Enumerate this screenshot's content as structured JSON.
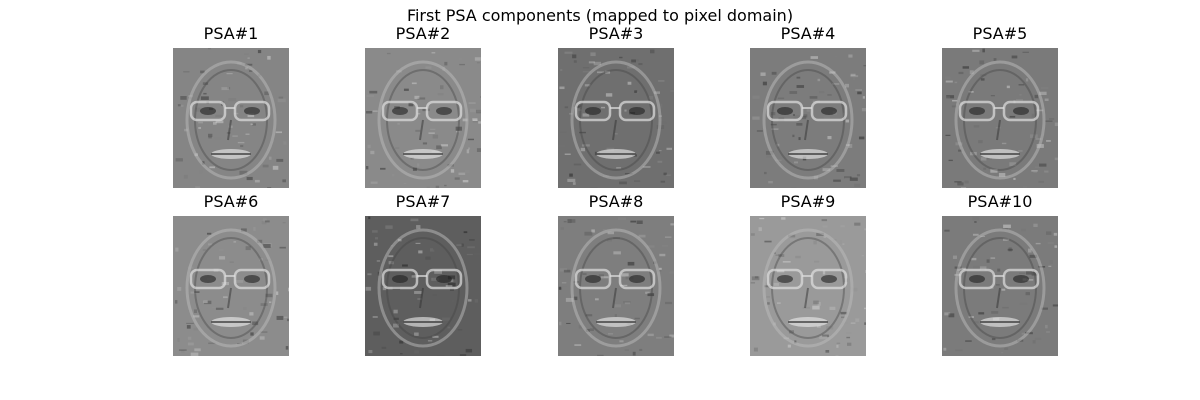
{
  "figure": {
    "title": "First PSA components (mapped to pixel domain)"
  },
  "panels": [
    {
      "title": "PSA#1",
      "tone": "#858585"
    },
    {
      "title": "PSA#2",
      "tone": "#8a8a8a"
    },
    {
      "title": "PSA#3",
      "tone": "#6f6f6f"
    },
    {
      "title": "PSA#4",
      "tone": "#7c7c7c"
    },
    {
      "title": "PSA#5",
      "tone": "#7a7a7a"
    },
    {
      "title": "PSA#6",
      "tone": "#8c8c8c"
    },
    {
      "title": "PSA#7",
      "tone": "#5e5e5e"
    },
    {
      "title": "PSA#8",
      "tone": "#7e7e7e"
    },
    {
      "title": "PSA#9",
      "tone": "#9a9a9a"
    },
    {
      "title": "PSA#10",
      "tone": "#7b7b7b"
    }
  ]
}
